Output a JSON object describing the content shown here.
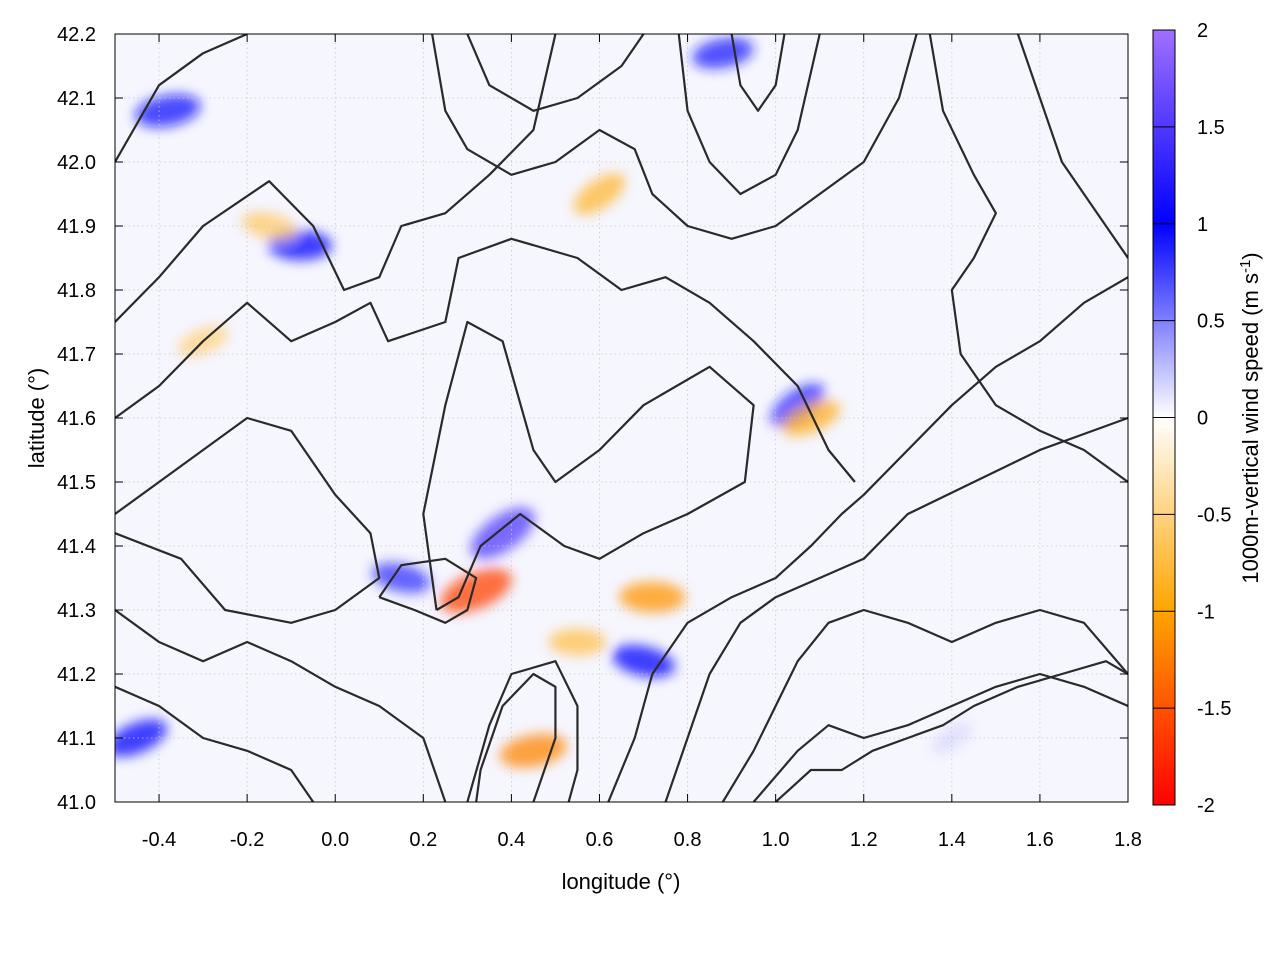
{
  "chart_data": {
    "type": "heatmap",
    "xlabel": "longitude (°)",
    "ylabel": "latitude (°)",
    "xlim": [
      -0.5,
      1.8
    ],
    "ylim": [
      41.0,
      42.2
    ],
    "xticks": [
      -0.4,
      -0.2,
      0.0,
      0.2,
      0.4,
      0.6,
      0.8,
      1.0,
      1.2,
      1.4,
      1.6,
      1.8
    ],
    "xtick_labels": [
      "-0.4",
      "-0.2",
      "0.0",
      "0.2",
      "0.4",
      "0.6",
      "0.8",
      "1.0",
      "1.2",
      "1.4",
      "1.6",
      "1.8"
    ],
    "yticks": [
      41.0,
      41.1,
      41.2,
      41.3,
      41.4,
      41.5,
      41.6,
      41.7,
      41.8,
      41.9,
      42.0,
      42.1,
      42.2
    ],
    "ytick_labels": [
      "41.0",
      "41.1",
      "41.2",
      "41.3",
      "41.4",
      "41.5",
      "41.6",
      "41.7",
      "41.8",
      "41.9",
      "42.0",
      "42.1",
      "42.2"
    ],
    "grid": true,
    "colorbar": {
      "label": "1000m-vertical wind speed (m s",
      "label_superscript": "-1",
      "label_close": ")",
      "range": [
        -2,
        2
      ],
      "ticks": [
        2,
        1.5,
        1,
        0.5,
        0,
        -0.5,
        -1,
        -1.5,
        -2
      ],
      "tick_labels": [
        "2",
        "1.5",
        "1",
        "0.5",
        "0",
        "-0.5",
        "-1",
        "-1.5",
        "-2"
      ],
      "colors": [
        {
          "value": -2,
          "color": "#ff0000"
        },
        {
          "value": -1,
          "color": "#ffa500"
        },
        {
          "value": 0,
          "color": "#ffffff"
        },
        {
          "value": 1,
          "color": "#0000ff"
        },
        {
          "value": 2,
          "color": "#a070ff"
        }
      ]
    },
    "field_features": [
      {
        "lon": 0.38,
        "lat": 41.42,
        "value": 1.5
      },
      {
        "lon": 0.32,
        "lat": 41.33,
        "value": -1.6
      },
      {
        "lon": 0.45,
        "lat": 41.08,
        "value": -1.2
      },
      {
        "lon": 0.72,
        "lat": 41.32,
        "value": -1.1
      },
      {
        "lon": 0.7,
        "lat": 41.22,
        "value": 1.0
      },
      {
        "lon": 1.05,
        "lat": 41.62,
        "value": 0.9
      },
      {
        "lon": 1.08,
        "lat": 41.6,
        "value": -0.9
      },
      {
        "lon": -0.38,
        "lat": 42.08,
        "value": 1.1
      },
      {
        "lon": -0.08,
        "lat": 41.87,
        "value": 1.0
      },
      {
        "lon": -0.15,
        "lat": 41.9,
        "value": -0.6
      },
      {
        "lon": 0.6,
        "lat": 41.95,
        "value": -0.8
      },
      {
        "lon": -0.45,
        "lat": 41.1,
        "value": 1.0
      },
      {
        "lon": 0.88,
        "lat": 42.17,
        "value": 0.9
      },
      {
        "lon": 0.55,
        "lat": 41.25,
        "value": -0.7
      },
      {
        "lon": 0.15,
        "lat": 41.35,
        "value": 0.8
      },
      {
        "lon": 1.4,
        "lat": 41.1,
        "value": 0.15
      },
      {
        "lon": -0.3,
        "lat": 41.72,
        "value": -0.5
      }
    ],
    "contours": [
      [
        [
          -0.5,
          42.0
        ],
        [
          -0.4,
          42.12
        ],
        [
          -0.3,
          42.17
        ],
        [
          -0.2,
          42.2
        ]
      ],
      [
        [
          -0.5,
          41.75
        ],
        [
          -0.4,
          41.82
        ],
        [
          -0.3,
          41.9
        ],
        [
          -0.15,
          41.97
        ],
        [
          -0.05,
          41.9
        ],
        [
          0.02,
          41.8
        ],
        [
          0.1,
          41.82
        ],
        [
          0.15,
          41.9
        ],
        [
          0.25,
          41.92
        ],
        [
          0.35,
          41.98
        ],
        [
          0.45,
          42.05
        ],
        [
          0.5,
          42.2
        ]
      ],
      [
        [
          -0.5,
          41.6
        ],
        [
          -0.4,
          41.65
        ],
        [
          -0.3,
          41.72
        ],
        [
          -0.2,
          41.78
        ],
        [
          -0.1,
          41.72
        ],
        [
          0.0,
          41.75
        ],
        [
          0.08,
          41.78
        ],
        [
          0.12,
          41.72
        ],
        [
          0.25,
          41.75
        ],
        [
          0.28,
          41.85
        ],
        [
          0.4,
          41.88
        ],
        [
          0.55,
          41.85
        ],
        [
          0.65,
          41.8
        ],
        [
          0.75,
          41.82
        ],
        [
          0.85,
          41.78
        ],
        [
          0.95,
          41.72
        ],
        [
          1.05,
          41.65
        ],
        [
          1.12,
          41.55
        ],
        [
          1.18,
          41.5
        ]
      ],
      [
        [
          0.23,
          41.3
        ],
        [
          0.2,
          41.45
        ],
        [
          0.25,
          41.62
        ],
        [
          0.3,
          41.75
        ],
        [
          0.38,
          41.72
        ],
        [
          0.45,
          41.55
        ],
        [
          0.5,
          41.5
        ],
        [
          0.6,
          41.55
        ],
        [
          0.7,
          41.62
        ],
        [
          0.85,
          41.68
        ],
        [
          0.95,
          41.62
        ],
        [
          0.93,
          41.5
        ],
        [
          0.8,
          41.45
        ],
        [
          0.7,
          41.42
        ],
        [
          0.6,
          41.38
        ],
        [
          0.52,
          41.4
        ],
        [
          0.42,
          41.45
        ],
        [
          0.33,
          41.4
        ],
        [
          0.28,
          41.32
        ],
        [
          0.23,
          41.3
        ]
      ],
      [
        [
          -0.5,
          41.45
        ],
        [
          -0.4,
          41.5
        ],
        [
          -0.3,
          41.55
        ],
        [
          -0.2,
          41.6
        ],
        [
          -0.1,
          41.58
        ],
        [
          0.0,
          41.48
        ],
        [
          0.08,
          41.42
        ],
        [
          0.1,
          41.35
        ],
        [
          0.0,
          41.3
        ],
        [
          -0.1,
          41.28
        ],
        [
          -0.25,
          41.3
        ],
        [
          -0.35,
          41.38
        ],
        [
          -0.5,
          41.42
        ]
      ],
      [
        [
          -0.5,
          41.3
        ],
        [
          -0.4,
          41.25
        ],
        [
          -0.3,
          41.22
        ],
        [
          -0.2,
          41.25
        ],
        [
          -0.1,
          41.22
        ],
        [
          0.0,
          41.18
        ],
        [
          0.1,
          41.15
        ],
        [
          0.2,
          41.1
        ],
        [
          0.25,
          41.0
        ]
      ],
      [
        [
          -0.5,
          41.18
        ],
        [
          -0.4,
          41.15
        ],
        [
          -0.3,
          41.1
        ],
        [
          -0.2,
          41.08
        ],
        [
          -0.1,
          41.05
        ],
        [
          -0.05,
          41.0
        ]
      ],
      [
        [
          0.3,
          41.0
        ],
        [
          0.35,
          41.12
        ],
        [
          0.4,
          41.2
        ],
        [
          0.5,
          41.22
        ],
        [
          0.55,
          41.15
        ],
        [
          0.55,
          41.05
        ],
        [
          0.53,
          41.0
        ]
      ],
      [
        [
          0.45,
          41.0
        ],
        [
          0.5,
          41.1
        ],
        [
          0.5,
          41.18
        ],
        [
          0.45,
          41.2
        ],
        [
          0.38,
          41.15
        ],
        [
          0.33,
          41.05
        ],
        [
          0.32,
          41.0
        ]
      ],
      [
        [
          0.62,
          41.0
        ],
        [
          0.68,
          41.1
        ],
        [
          0.72,
          41.2
        ],
        [
          0.8,
          41.28
        ],
        [
          0.9,
          41.32
        ],
        [
          1.0,
          41.35
        ],
        [
          1.08,
          41.4
        ],
        [
          1.15,
          41.45
        ],
        [
          1.2,
          41.48
        ],
        [
          1.3,
          41.55
        ],
        [
          1.4,
          41.62
        ],
        [
          1.5,
          41.68
        ],
        [
          1.6,
          41.72
        ],
        [
          1.7,
          41.78
        ],
        [
          1.8,
          41.82
        ]
      ],
      [
        [
          0.75,
          41.0
        ],
        [
          0.8,
          41.1
        ],
        [
          0.85,
          41.2
        ],
        [
          0.92,
          41.28
        ],
        [
          1.0,
          41.32
        ],
        [
          1.1,
          41.35
        ],
        [
          1.2,
          41.38
        ],
        [
          1.3,
          41.45
        ],
        [
          1.45,
          41.5
        ],
        [
          1.6,
          41.55
        ],
        [
          1.8,
          41.6
        ]
      ],
      [
        [
          0.88,
          41.0
        ],
        [
          0.95,
          41.08
        ],
        [
          1.0,
          41.15
        ],
        [
          1.05,
          41.22
        ],
        [
          1.12,
          41.28
        ],
        [
          1.2,
          41.3
        ],
        [
          1.3,
          41.28
        ],
        [
          1.4,
          41.25
        ],
        [
          1.5,
          41.28
        ],
        [
          1.6,
          41.3
        ],
        [
          1.7,
          41.28
        ],
        [
          1.8,
          41.2
        ]
      ],
      [
        [
          0.95,
          41.0
        ],
        [
          1.05,
          41.08
        ],
        [
          1.12,
          41.12
        ],
        [
          1.2,
          41.1
        ],
        [
          1.3,
          41.12
        ],
        [
          1.4,
          41.15
        ],
        [
          1.5,
          41.18
        ],
        [
          1.6,
          41.2
        ],
        [
          1.7,
          41.18
        ],
        [
          1.8,
          41.15
        ]
      ],
      [
        [
          1.0,
          41.0
        ],
        [
          1.08,
          41.05
        ],
        [
          1.15,
          41.05
        ],
        [
          1.22,
          41.08
        ],
        [
          1.3,
          41.1
        ],
        [
          1.38,
          41.12
        ],
        [
          1.45,
          41.15
        ],
        [
          1.55,
          41.18
        ],
        [
          1.65,
          41.2
        ],
        [
          1.75,
          41.22
        ],
        [
          1.8,
          41.2
        ]
      ],
      [
        [
          1.35,
          42.2
        ],
        [
          1.38,
          42.08
        ],
        [
          1.45,
          41.98
        ],
        [
          1.5,
          41.92
        ],
        [
          1.45,
          41.85
        ],
        [
          1.4,
          41.8
        ],
        [
          1.42,
          41.7
        ],
        [
          1.5,
          41.62
        ],
        [
          1.6,
          41.58
        ],
        [
          1.7,
          41.55
        ],
        [
          1.8,
          41.5
        ]
      ],
      [
        [
          1.55,
          42.2
        ],
        [
          1.6,
          42.1
        ],
        [
          1.65,
          42.0
        ],
        [
          1.7,
          41.95
        ],
        [
          1.75,
          41.9
        ],
        [
          1.8,
          41.85
        ]
      ],
      [
        [
          0.78,
          42.2
        ],
        [
          0.8,
          42.08
        ],
        [
          0.85,
          42.0
        ],
        [
          0.92,
          41.95
        ],
        [
          1.0,
          41.98
        ],
        [
          1.05,
          42.05
        ],
        [
          1.1,
          42.2
        ]
      ],
      [
        [
          0.9,
          42.2
        ],
        [
          0.92,
          42.12
        ],
        [
          0.96,
          42.08
        ],
        [
          1.0,
          42.12
        ],
        [
          1.02,
          42.2
        ]
      ],
      [
        [
          0.22,
          42.2
        ],
        [
          0.25,
          42.08
        ],
        [
          0.3,
          42.02
        ],
        [
          0.4,
          41.98
        ],
        [
          0.5,
          42.0
        ],
        [
          0.6,
          42.05
        ],
        [
          0.68,
          42.02
        ],
        [
          0.72,
          41.95
        ],
        [
          0.8,
          41.9
        ],
        [
          0.9,
          41.88
        ],
        [
          1.0,
          41.9
        ],
        [
          1.1,
          41.95
        ],
        [
          1.2,
          42.0
        ],
        [
          1.28,
          42.1
        ],
        [
          1.32,
          42.2
        ]
      ],
      [
        [
          0.3,
          42.2
        ],
        [
          0.35,
          42.12
        ],
        [
          0.45,
          42.08
        ],
        [
          0.55,
          42.1
        ],
        [
          0.65,
          42.15
        ],
        [
          0.7,
          42.2
        ]
      ],
      [
        [
          0.1,
          41.32
        ],
        [
          0.18,
          41.3
        ],
        [
          0.25,
          41.28
        ],
        [
          0.3,
          41.3
        ],
        [
          0.32,
          41.35
        ],
        [
          0.25,
          41.38
        ],
        [
          0.15,
          41.37
        ],
        [
          0.1,
          41.32
        ]
      ]
    ]
  }
}
